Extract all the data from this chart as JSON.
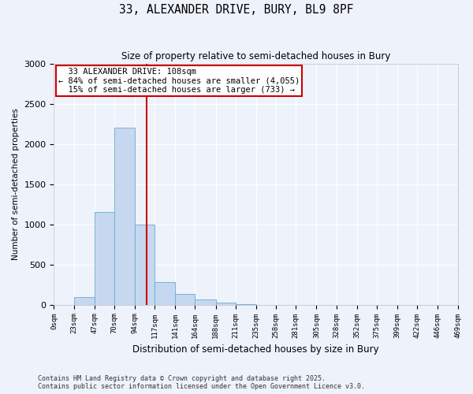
{
  "title": "33, ALEXANDER DRIVE, BURY, BL9 8PF",
  "subtitle": "Size of property relative to semi-detached houses in Bury",
  "xlabel": "Distribution of semi-detached houses by size in Bury",
  "ylabel": "Number of semi-detached properties",
  "property_label": "33 ALEXANDER DRIVE: 108sqm",
  "pct_smaller": 84,
  "count_smaller": 4055,
  "pct_larger": 15,
  "count_larger": 733,
  "bin_edges": [
    0,
    23,
    47,
    70,
    94,
    117,
    141,
    164,
    188,
    211,
    235,
    258,
    281,
    305,
    328,
    352,
    375,
    399,
    422,
    446,
    469
  ],
  "bin_labels": [
    "0sqm",
    "23sqm",
    "47sqm",
    "70sqm",
    "94sqm",
    "117sqm",
    "141sqm",
    "164sqm",
    "188sqm",
    "211sqm",
    "235sqm",
    "258sqm",
    "281sqm",
    "305sqm",
    "328sqm",
    "352sqm",
    "375sqm",
    "399sqm",
    "422sqm",
    "446sqm",
    "469sqm"
  ],
  "bar_heights": [
    0,
    95,
    1150,
    2200,
    1000,
    280,
    130,
    70,
    30,
    5,
    0,
    0,
    0,
    0,
    0,
    0,
    0,
    0,
    0,
    0
  ],
  "bar_color": "#c5d8f0",
  "bar_edge_color": "#6aaad4",
  "vline_color": "#cc0000",
  "vline_x": 108,
  "annotation_box_color": "#cc0000",
  "ylim": [
    0,
    3000
  ],
  "yticks": [
    0,
    500,
    1000,
    1500,
    2000,
    2500,
    3000
  ],
  "background_color": "#eef2fb",
  "grid_color": "#ffffff",
  "footer_line1": "Contains HM Land Registry data © Crown copyright and database right 2025.",
  "footer_line2": "Contains public sector information licensed under the Open Government Licence v3.0."
}
